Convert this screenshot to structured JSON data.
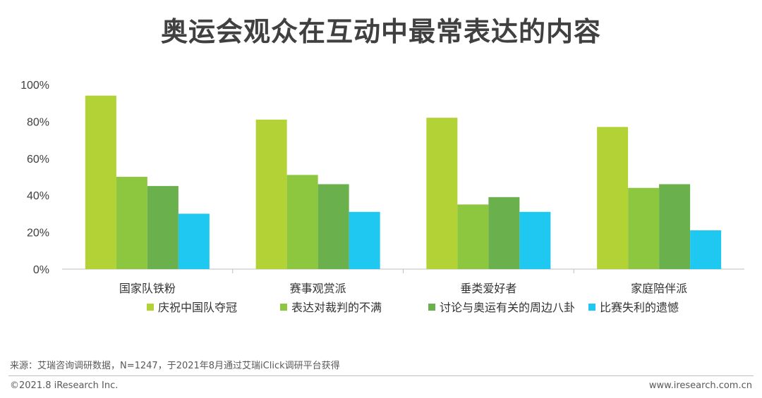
{
  "title": "奥运会观众在互动中最常表达的内容",
  "chart_data": {
    "type": "bar",
    "categories": [
      "国家队铁粉",
      "赛事观赏派",
      "垂类爱好者",
      "家庭陪伴派"
    ],
    "series": [
      {
        "name": "庆祝中国队夺冠",
        "color": "#b2d235",
        "values": [
          94,
          81,
          82,
          77
        ]
      },
      {
        "name": "表达对裁判的不满",
        "color": "#8dc63f",
        "values": [
          50,
          51,
          35,
          44
        ]
      },
      {
        "name": "讨论与奥运有关的周边八卦",
        "color": "#6ab04c",
        "values": [
          45,
          46,
          39,
          46
        ]
      },
      {
        "name": "比赛失利的遗憾",
        "color": "#1ec8f0",
        "values": [
          30,
          31,
          31,
          21
        ]
      }
    ],
    "yticks": [
      "0%",
      "20%",
      "40%",
      "60%",
      "80%",
      "100%"
    ],
    "ylim": [
      0,
      100
    ],
    "grid": false,
    "legend": "bottom"
  },
  "source": "来源：艾瑞咨询调研数据，N=1247，于2021年8月通过艾瑞iClick调研平台获得",
  "copyright": "©2021.8 iResearch Inc.",
  "website": "www.iresearch.com.cn"
}
